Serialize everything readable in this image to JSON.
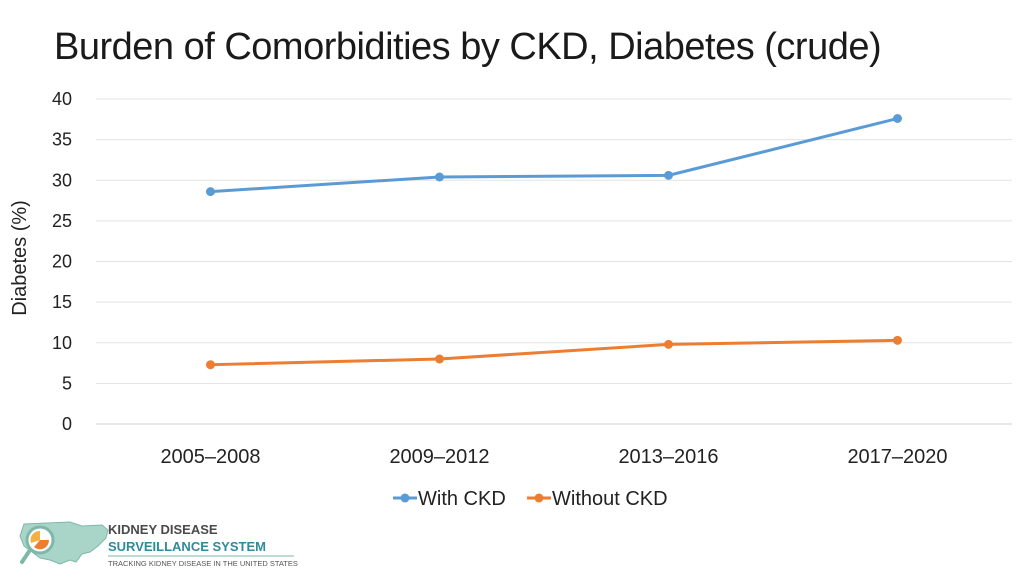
{
  "chart_data": {
    "type": "line",
    "title": "Burden of Comorbidities by CKD, Diabetes (crude)",
    "xlabel": "",
    "ylabel": "Diabetes (%)",
    "categories": [
      "2005–2008",
      "2009–2012",
      "2013–2016",
      "2017–2020"
    ],
    "ylim": [
      0,
      40
    ],
    "yticks": [
      0,
      5,
      10,
      15,
      20,
      25,
      30,
      35,
      40
    ],
    "grid": true,
    "legend_position": "bottom",
    "series": [
      {
        "name": "With CKD",
        "color": "#5b9bd5",
        "values": [
          28.6,
          30.4,
          30.6,
          37.6
        ]
      },
      {
        "name": "Without CKD",
        "color": "#ed7d31",
        "values": [
          7.3,
          8.0,
          9.8,
          10.3
        ]
      }
    ]
  },
  "logo": {
    "line1": "KIDNEY DISEASE",
    "line2": "SURVEILLANCE SYSTEM",
    "tagline": "TRACKING KIDNEY DISEASE IN THE UNITED STATES"
  }
}
